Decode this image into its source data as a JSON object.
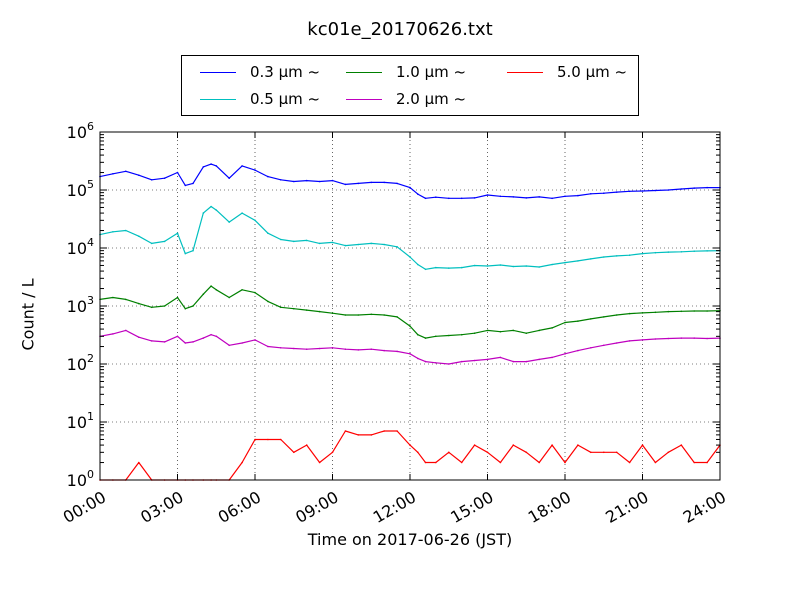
{
  "chart_data": {
    "type": "line",
    "title": "kc01e_20170626.txt",
    "xlabel": "Time on 2017-06-26 (JST)",
    "ylabel": "Count / L",
    "xlim": [
      0,
      24
    ],
    "ylim": [
      1,
      1000000
    ],
    "yscale": "log",
    "grid": true,
    "legend_position": "top-center",
    "x_tick_labels": [
      "00:00",
      "03:00",
      "06:00",
      "09:00",
      "12:00",
      "15:00",
      "18:00",
      "21:00",
      "24:00"
    ],
    "y_tick_labels": [
      {
        "base": "10",
        "exp": "0"
      },
      {
        "base": "10",
        "exp": "1"
      },
      {
        "base": "10",
        "exp": "2"
      },
      {
        "base": "10",
        "exp": "3"
      },
      {
        "base": "10",
        "exp": "4"
      },
      {
        "base": "10",
        "exp": "5"
      },
      {
        "base": "10",
        "exp": "6"
      }
    ],
    "x": [
      0,
      0.5,
      1,
      1.5,
      2,
      2.5,
      3,
      3.3,
      3.6,
      4,
      4.3,
      4.5,
      5,
      5.5,
      6,
      6.5,
      7,
      7.5,
      8,
      8.5,
      9,
      9.5,
      10,
      10.5,
      11,
      11.5,
      12,
      12.3,
      12.6,
      13,
      13.5,
      14,
      14.5,
      15,
      15.5,
      16,
      16.5,
      17,
      17.5,
      18,
      18.5,
      19,
      19.5,
      20,
      20.5,
      21,
      21.5,
      22,
      22.5,
      23,
      23.5,
      24
    ],
    "series": [
      {
        "name": "0.3 μm ~",
        "color": "#0000ff",
        "values": [
          170000,
          190000,
          210000,
          180000,
          150000,
          160000,
          200000,
          120000,
          130000,
          250000,
          280000,
          260000,
          160000,
          260000,
          220000,
          170000,
          150000,
          140000,
          145000,
          140000,
          145000,
          125000,
          130000,
          135000,
          135000,
          130000,
          110000,
          85000,
          72000,
          75000,
          72000,
          72000,
          73000,
          82000,
          78000,
          76000,
          73000,
          76000,
          72000,
          78000,
          80000,
          86000,
          88000,
          92000,
          95000,
          96000,
          98000,
          100000,
          104000,
          108000,
          110000,
          110000
        ]
      },
      {
        "name": "0.5 μm ~",
        "color": "#00bfbf",
        "values": [
          17000,
          19000,
          20000,
          16000,
          12000,
          13000,
          18000,
          8000,
          9000,
          40000,
          52000,
          45000,
          28000,
          40000,
          30000,
          18000,
          14000,
          13000,
          13500,
          12000,
          12500,
          11000,
          11500,
          12000,
          11500,
          10500,
          7000,
          5200,
          4300,
          4600,
          4500,
          4600,
          5000,
          4900,
          5100,
          4800,
          4900,
          4700,
          5200,
          5600,
          6000,
          6500,
          7000,
          7300,
          7500,
          8000,
          8300,
          8500,
          8600,
          8800,
          8900,
          9000
        ]
      },
      {
        "name": "1.0 μm ~",
        "color": "#008000",
        "values": [
          1300,
          1400,
          1300,
          1100,
          950,
          1000,
          1400,
          900,
          1000,
          1600,
          2200,
          1900,
          1400,
          1900,
          1700,
          1200,
          950,
          900,
          850,
          800,
          750,
          700,
          700,
          720,
          700,
          650,
          450,
          320,
          280,
          300,
          310,
          320,
          340,
          380,
          360,
          380,
          340,
          380,
          420,
          520,
          550,
          600,
          650,
          700,
          740,
          760,
          780,
          800,
          810,
          820,
          820,
          830
        ]
      },
      {
        "name": "2.0 μm ~",
        "color": "#bf00bf",
        "values": [
          300,
          330,
          380,
          290,
          250,
          240,
          300,
          230,
          240,
          280,
          320,
          300,
          210,
          230,
          260,
          200,
          190,
          185,
          180,
          185,
          190,
          180,
          175,
          180,
          170,
          165,
          150,
          125,
          110,
          105,
          100,
          110,
          115,
          120,
          130,
          110,
          110,
          120,
          130,
          150,
          170,
          190,
          210,
          230,
          250,
          260,
          270,
          275,
          280,
          280,
          275,
          280
        ]
      },
      {
        "name": "5.0 μm ~",
        "color": "#ff0000",
        "values": [
          1,
          1,
          1,
          2,
          1,
          1,
          1,
          1,
          1,
          1,
          1,
          1,
          1,
          2,
          5,
          5,
          5,
          3,
          4,
          2,
          3,
          7,
          6,
          6,
          7,
          7,
          4,
          3,
          2,
          2,
          3,
          2,
          4,
          3,
          2,
          4,
          3,
          2,
          4,
          2,
          4,
          3,
          3,
          3,
          2,
          4,
          2,
          3,
          4,
          2,
          2,
          4
        ]
      }
    ]
  }
}
